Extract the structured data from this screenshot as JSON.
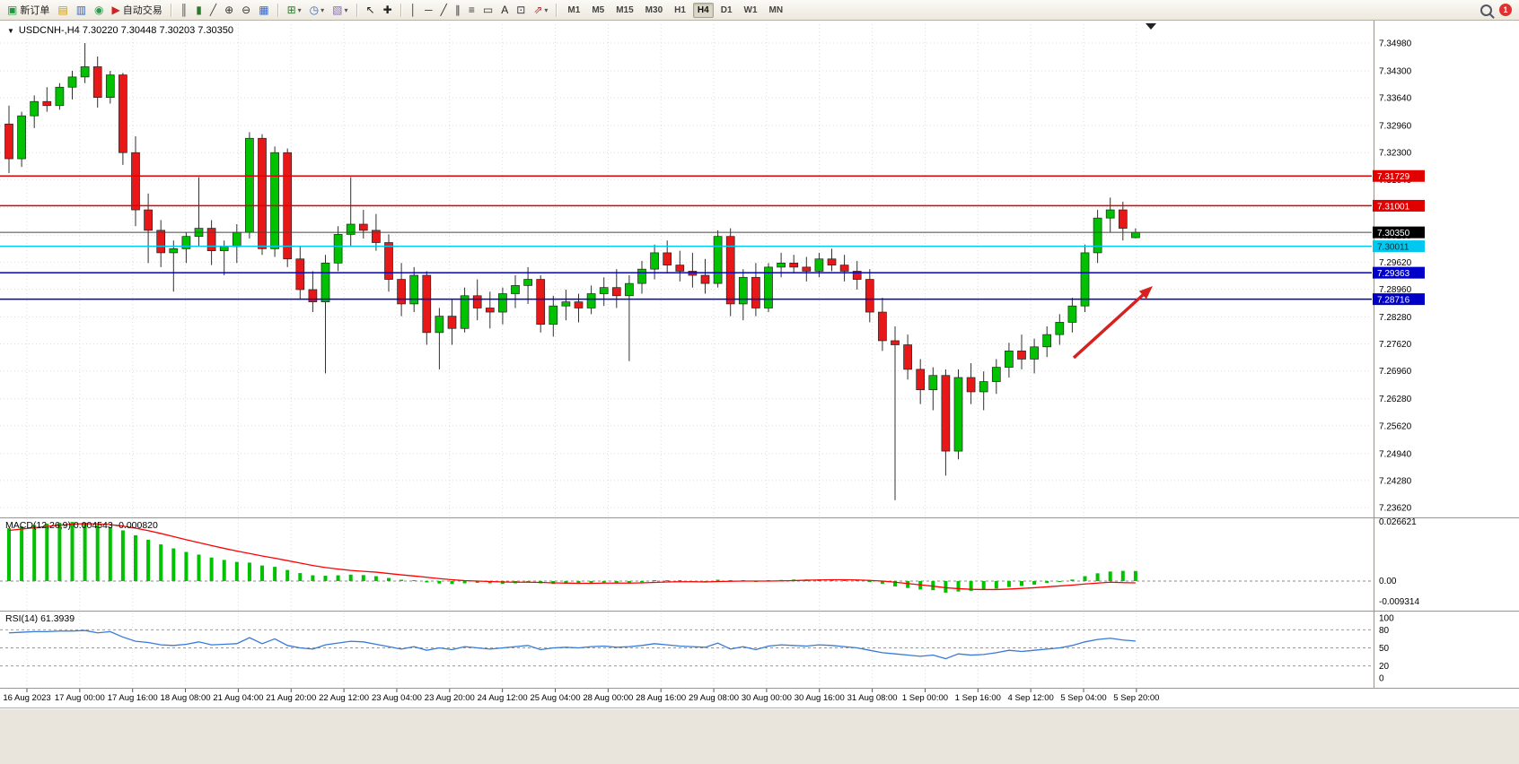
{
  "icons": {
    "chart_menu": "▼"
  },
  "toolbar": {
    "badge": "1",
    "groups": [
      {
        "items": [
          {
            "name": "new-order-button",
            "icon": "new-order-icon",
            "glyph": "▣",
            "glyph_color": "#1a9c3c",
            "label": "新订单"
          },
          {
            "name": "charts-button",
            "icon": "chart-folder-icon",
            "glyph": "▤",
            "glyph_color": "#c89610"
          },
          {
            "name": "market-watch-button",
            "icon": "market-watch-icon",
            "glyph": "▥",
            "glyph_color": "#3264c8"
          },
          {
            "name": "navigator-button",
            "icon": "navigator-icon",
            "glyph": "◉",
            "glyph_color": "#2e9b4e"
          },
          {
            "name": "auto-trading-button",
            "icon": "auto-trading-icon",
            "glyph": "▶",
            "glyph_color": "#d02020",
            "label": "自动交易"
          }
        ]
      },
      {
        "items": [
          {
            "name": "bar-chart-button",
            "icon": "bar-chart-icon",
            "glyph": "║",
            "glyph_color": "#444"
          },
          {
            "name": "candlestick-chart-button",
            "icon": "candlestick-icon",
            "glyph": "▮",
            "glyph_color": "#2a7a2a"
          },
          {
            "name": "line-chart-button",
            "icon": "line-chart-icon",
            "glyph": "╱",
            "glyph_color": "#444"
          },
          {
            "name": "zoom-in-button",
            "icon": "zoom-in-icon",
            "glyph": "⊕",
            "glyph_color": "#333"
          },
          {
            "name": "zoom-out-button",
            "icon": "zoom-out-icon",
            "glyph": "⊖",
            "glyph_color": "#333"
          },
          {
            "name": "tile-windows-button",
            "icon": "tile-windows-icon",
            "glyph": "▦",
            "glyph_color": "#3264c8"
          }
        ]
      },
      {
        "items": [
          {
            "name": "new-chart-button",
            "icon": "new-chart-icon",
            "glyph": "⊞",
            "glyph_color": "#2a7a2a",
            "dropdown": true
          },
          {
            "name": "period-button",
            "icon": "clock-icon",
            "glyph": "◷",
            "glyph_color": "#3264c8",
            "dropdown": true
          },
          {
            "name": "indicators-button",
            "icon": "indicator-icon",
            "glyph": "▧",
            "glyph_color": "#8a6ac0",
            "dropdown": true
          }
        ]
      },
      {
        "items": [
          {
            "name": "cursor-button",
            "icon": "cursor-icon",
            "glyph": "↖",
            "glyph_color": "#222"
          },
          {
            "name": "crosshair-button",
            "icon": "crosshair-icon",
            "glyph": "✚",
            "glyph_color": "#222"
          }
        ]
      },
      {
        "items": [
          {
            "name": "vertical-line-button",
            "icon": "vertical-line-icon",
            "glyph": "│",
            "glyph_color": "#333"
          },
          {
            "name": "horizontal-line-button",
            "icon": "horizontal-line-icon",
            "glyph": "─",
            "glyph_color": "#333"
          },
          {
            "name": "trendline-button",
            "icon": "trendline-icon",
            "glyph": "╱",
            "glyph_color": "#333"
          },
          {
            "name": "channel-button",
            "icon": "channel-icon",
            "glyph": "∥",
            "glyph_color": "#333"
          },
          {
            "name": "fibonacci-button",
            "icon": "fibonacci-icon",
            "glyph": "≡",
            "glyph_color": "#333"
          },
          {
            "name": "shapes-button",
            "icon": "shapes-icon",
            "glyph": "▭",
            "glyph_color": "#333"
          },
          {
            "name": "text-button",
            "icon": "text-icon",
            "glyph": "A",
            "glyph_color": "#222"
          },
          {
            "name": "label-button",
            "icon": "text-label-icon",
            "glyph": "⊡",
            "glyph_color": "#333"
          },
          {
            "name": "arrows-button",
            "icon": "arrow-objects-icon",
            "glyph": "⇗",
            "glyph_color": "#b03030",
            "dropdown": true
          }
        ]
      }
    ],
    "timeframes": [
      {
        "label": "M1"
      },
      {
        "label": "M5"
      },
      {
        "label": "M15"
      },
      {
        "label": "M30"
      },
      {
        "label": "H1"
      },
      {
        "label": "H4",
        "active": true
      },
      {
        "label": "D1"
      },
      {
        "label": "W1"
      },
      {
        "label": "MN"
      }
    ]
  },
  "chart_data": {
    "type": "candlestick",
    "title": "USDCNH-,H4   7.30220 7.30448 7.30203 7.30350",
    "symbol": "USDCNH-",
    "period": "H4",
    "quote": {
      "open": "7.30220",
      "high": "7.30448",
      "low": "7.30203",
      "close": "7.30350"
    },
    "ylim": [
      7.2362,
      7.3498
    ],
    "y_ticks": [
      "7.34980",
      "7.34300",
      "7.33640",
      "7.32960",
      "7.32300",
      "7.31640",
      "7.30960",
      "7.30280",
      "7.29620",
      "7.28960",
      "7.28280",
      "7.27620",
      "7.26960",
      "7.26280",
      "7.25620",
      "7.24940",
      "7.24280",
      "7.23620"
    ],
    "x_labels": [
      "16 Aug 2023",
      "17 Aug 00:00",
      "17 Aug 16:00",
      "18 Aug 08:00",
      "21 Aug 04:00",
      "21 Aug 20:00",
      "22 Aug 12:00",
      "23 Aug 04:00",
      "23 Aug 20:00",
      "24 Aug 12:00",
      "25 Aug 04:00",
      "28 Aug 00:00",
      "28 Aug 16:00",
      "29 Aug 08:00",
      "30 Aug 00:00",
      "30 Aug 16:00",
      "31 Aug 08:00",
      "1 Sep 00:00",
      "1 Sep 16:00",
      "4 Sep 12:00",
      "5 Sep 04:00",
      "5 Sep 20:00"
    ],
    "candles": [
      [
        7.33,
        7.3345,
        7.318,
        7.3215
      ],
      [
        7.3215,
        7.333,
        7.3195,
        7.332
      ],
      [
        7.332,
        7.337,
        7.329,
        7.3355
      ],
      [
        7.3355,
        7.339,
        7.333,
        7.3345
      ],
      [
        7.3345,
        7.34,
        7.3335,
        7.339
      ],
      [
        7.339,
        7.343,
        7.336,
        7.3415
      ],
      [
        7.3415,
        7.3498,
        7.34,
        7.344
      ],
      [
        7.344,
        7.3465,
        7.334,
        7.3365
      ],
      [
        7.3365,
        7.343,
        7.335,
        7.342
      ],
      [
        7.342,
        7.3425,
        7.32,
        7.323
      ],
      [
        7.323,
        7.327,
        7.305,
        7.309
      ],
      [
        7.309,
        7.313,
        7.296,
        7.304
      ],
      [
        7.304,
        7.3065,
        7.295,
        7.2985
      ],
      [
        7.2985,
        7.3015,
        7.289,
        7.2995
      ],
      [
        7.2995,
        7.3035,
        7.296,
        7.3025
      ],
      [
        7.3025,
        7.317,
        7.3,
        7.3045
      ],
      [
        7.3045,
        7.3065,
        7.2955,
        7.299
      ],
      [
        7.299,
        7.3015,
        7.293,
        7.3
      ],
      [
        7.3,
        7.3055,
        7.296,
        7.3035
      ],
      [
        7.3035,
        7.328,
        7.302,
        7.3265
      ],
      [
        7.3265,
        7.3275,
        7.298,
        7.2995
      ],
      [
        7.2995,
        7.3245,
        7.2975,
        7.323
      ],
      [
        7.323,
        7.324,
        7.295,
        7.297
      ],
      [
        7.297,
        7.3,
        7.287,
        7.2895
      ],
      [
        7.2895,
        7.294,
        7.284,
        7.2865
      ],
      [
        7.2865,
        7.298,
        7.269,
        7.296
      ],
      [
        7.296,
        7.305,
        7.294,
        7.303
      ],
      [
        7.303,
        7.317,
        7.3,
        7.3055
      ],
      [
        7.3055,
        7.309,
        7.302,
        7.304
      ],
      [
        7.304,
        7.308,
        7.299,
        7.301
      ],
      [
        7.301,
        7.303,
        7.289,
        7.292
      ],
      [
        7.292,
        7.296,
        7.283,
        7.286
      ],
      [
        7.286,
        7.295,
        7.284,
        7.293
      ],
      [
        7.293,
        7.294,
        7.276,
        7.279
      ],
      [
        7.279,
        7.285,
        7.27,
        7.283
      ],
      [
        7.283,
        7.287,
        7.276,
        7.28
      ],
      [
        7.28,
        7.29,
        7.279,
        7.288
      ],
      [
        7.288,
        7.292,
        7.282,
        7.285
      ],
      [
        7.285,
        7.289,
        7.28,
        7.284
      ],
      [
        7.284,
        7.29,
        7.281,
        7.2885
      ],
      [
        7.2885,
        7.293,
        7.285,
        7.2905
      ],
      [
        7.2905,
        7.295,
        7.286,
        7.292
      ],
      [
        7.292,
        7.293,
        7.279,
        7.281
      ],
      [
        7.281,
        7.288,
        7.278,
        7.2855
      ],
      [
        7.2855,
        7.2895,
        7.282,
        7.2865
      ],
      [
        7.2865,
        7.2885,
        7.2815,
        7.285
      ],
      [
        7.285,
        7.2905,
        7.2835,
        7.2885
      ],
      [
        7.2885,
        7.2925,
        7.2855,
        7.29
      ],
      [
        7.29,
        7.2945,
        7.285,
        7.288
      ],
      [
        7.288,
        7.293,
        7.272,
        7.291
      ],
      [
        7.291,
        7.2965,
        7.2885,
        7.2945
      ],
      [
        7.2945,
        7.3005,
        7.292,
        7.2985
      ],
      [
        7.2985,
        7.3015,
        7.2935,
        7.2955
      ],
      [
        7.2955,
        7.299,
        7.2915,
        7.294
      ],
      [
        7.294,
        7.2985,
        7.29,
        7.293
      ],
      [
        7.293,
        7.297,
        7.2885,
        7.291
      ],
      [
        7.291,
        7.304,
        7.29,
        7.3025
      ],
      [
        7.3025,
        7.3045,
        7.283,
        7.286
      ],
      [
        7.286,
        7.2945,
        7.282,
        7.2925
      ],
      [
        7.2925,
        7.296,
        7.283,
        7.285
      ],
      [
        7.285,
        7.296,
        7.284,
        7.295
      ],
      [
        7.295,
        7.2985,
        7.2925,
        7.296
      ],
      [
        7.296,
        7.298,
        7.2935,
        7.295
      ],
      [
        7.295,
        7.2975,
        7.2915,
        7.294
      ],
      [
        7.294,
        7.2985,
        7.2925,
        7.297
      ],
      [
        7.297,
        7.2995,
        7.294,
        7.2955
      ],
      [
        7.2955,
        7.298,
        7.2915,
        7.294
      ],
      [
        7.294,
        7.2965,
        7.2895,
        7.292
      ],
      [
        7.292,
        7.2945,
        7.2815,
        7.284
      ],
      [
        7.284,
        7.2875,
        7.2745,
        7.277
      ],
      [
        7.277,
        7.2805,
        7.238,
        7.276
      ],
      [
        7.276,
        7.2785,
        7.2675,
        7.27
      ],
      [
        7.27,
        7.2725,
        7.2615,
        7.265
      ],
      [
        7.265,
        7.2705,
        7.26,
        7.2685
      ],
      [
        7.2685,
        7.27,
        7.244,
        7.25
      ],
      [
        7.25,
        7.27,
        7.248,
        7.268
      ],
      [
        7.268,
        7.2715,
        7.2615,
        7.2645
      ],
      [
        7.2645,
        7.2695,
        7.26,
        7.267
      ],
      [
        7.267,
        7.2725,
        7.264,
        7.2705
      ],
      [
        7.2705,
        7.2765,
        7.268,
        7.2745
      ],
      [
        7.2745,
        7.2785,
        7.27,
        7.2725
      ],
      [
        7.2725,
        7.2775,
        7.269,
        7.2755
      ],
      [
        7.2755,
        7.2805,
        7.273,
        7.2785
      ],
      [
        7.2785,
        7.2835,
        7.276,
        7.2815
      ],
      [
        7.2815,
        7.2875,
        7.279,
        7.2855
      ],
      [
        7.2855,
        7.3005,
        7.284,
        7.2985
      ],
      [
        7.2985,
        7.309,
        7.296,
        7.307
      ],
      [
        7.307,
        7.312,
        7.3035,
        7.309
      ],
      [
        7.309,
        7.311,
        7.3015,
        7.3045
      ],
      [
        7.3022,
        7.30448,
        7.30203,
        7.3035
      ]
    ],
    "levels": [
      {
        "price": 7.31729,
        "label": "7.31729",
        "color": "#E00000",
        "text": "#FFFFFF"
      },
      {
        "price": 7.31001,
        "label": "7.31001",
        "color": "#E00000",
        "text": "#FFFFFF"
      },
      {
        "price": 7.30011,
        "label": "7.30011",
        "color": "#00C8F0",
        "text": "#00303C"
      },
      {
        "price": 7.29363,
        "label": "7.29363",
        "color": "#0000C8",
        "text": "#FFFFFF"
      },
      {
        "price": 7.28716,
        "label": "7.28716",
        "color": "#0000C8",
        "text": "#FFFFFF"
      }
    ],
    "current_price": {
      "value": 7.3035,
      "label": "7.30350"
    },
    "arrow": {
      "from": [
        1196,
        376
      ],
      "to": [
        1284,
        296
      ],
      "color": "#D82020"
    },
    "indicators": {
      "macd": {
        "label": "MACD(12,26,9) 0.004543 -0.000820",
        "scale_labels": [
          "0.026621",
          "0.00",
          "-0.009314"
        ],
        "range": [
          -0.009314,
          0.026621
        ],
        "histogram": [
          0.0238,
          0.0246,
          0.0252,
          0.0258,
          0.0262,
          0.0266,
          0.0262,
          0.0252,
          0.0243,
          0.0228,
          0.0206,
          0.0186,
          0.0165,
          0.0147,
          0.0131,
          0.0119,
          0.0106,
          0.0095,
          0.0086,
          0.0083,
          0.007,
          0.0064,
          0.005,
          0.0036,
          0.0026,
          0.0024,
          0.0026,
          0.0029,
          0.0027,
          0.0022,
          0.0014,
          0.0006,
          0.0003,
          -0.0006,
          -0.0011,
          -0.0013,
          -0.001,
          -0.0008,
          -0.001,
          -0.0012,
          -0.001,
          -0.0006,
          -0.001,
          -0.0013,
          -0.0012,
          -0.0012,
          -0.0009,
          -0.0007,
          -0.0008,
          -0.001,
          -0.0005,
          0.0001,
          0.0002,
          0.0001,
          -0.0001,
          -0.0003,
          0.0006,
          0.0004,
          0.0003,
          -0.0001,
          0.0002,
          0.0005,
          0.0007,
          0.0007,
          0.0008,
          0.0007,
          0.0005,
          0.0003,
          -0.0003,
          -0.0012,
          -0.0024,
          -0.0031,
          -0.0038,
          -0.0041,
          -0.0052,
          -0.0047,
          -0.0044,
          -0.004,
          -0.0034,
          -0.0027,
          -0.0022,
          -0.0016,
          -0.0009,
          -0.0003,
          0.0007,
          0.0022,
          0.0035,
          0.0043,
          0.0046,
          0.004543
        ],
        "signal": [
          0.0228,
          0.0234,
          0.024,
          0.0246,
          0.0251,
          0.0256,
          0.0258,
          0.0257,
          0.0254,
          0.0247,
          0.0238,
          0.0227,
          0.0214,
          0.02,
          0.0186,
          0.0173,
          0.016,
          0.0147,
          0.0135,
          0.0124,
          0.0113,
          0.0103,
          0.0092,
          0.0081,
          0.007,
          0.0061,
          0.0054,
          0.0048,
          0.0044,
          0.004,
          0.0034,
          0.0028,
          0.0023,
          0.0017,
          0.0011,
          0.0006,
          0.0002,
          0.0,
          -0.0002,
          -0.0004,
          -0.0005,
          -0.0005,
          -0.0006,
          -0.0008,
          -0.0009,
          -0.001,
          -0.001,
          -0.0009,
          -0.0009,
          -0.0009,
          -0.0008,
          -0.0006,
          -0.0004,
          -0.0003,
          -0.0003,
          -0.0004,
          -0.0002,
          -0.0001,
          0.0,
          0.0,
          0.0,
          0.0001,
          0.0002,
          0.0004,
          0.0005,
          0.0006,
          0.0006,
          0.0005,
          0.0003,
          0.0,
          -0.0005,
          -0.0011,
          -0.0017,
          -0.0023,
          -0.003,
          -0.0034,
          -0.0037,
          -0.0038,
          -0.0038,
          -0.0036,
          -0.0033,
          -0.003,
          -0.0026,
          -0.0022,
          -0.0018,
          -0.0013,
          -0.0009,
          -0.0005,
          -0.0007,
          -0.00082
        ]
      },
      "rsi": {
        "label": "RSI(14) 61.3939",
        "scale_labels": [
          "100",
          "80",
          "50",
          "20",
          "0"
        ],
        "scale_values": [
          100,
          80,
          50,
          20,
          0
        ],
        "dashed_levels": [
          80,
          50,
          20
        ],
        "range": [
          0,
          100
        ],
        "values": [
          75,
          76,
          77,
          77,
          78,
          78,
          79,
          75,
          77,
          68,
          61,
          59,
          55,
          54,
          56,
          60,
          55,
          56,
          57,
          67,
          57,
          65,
          54,
          50,
          48,
          55,
          58,
          61,
          60,
          56,
          52,
          48,
          52,
          46,
          50,
          47,
          52,
          50,
          48,
          50,
          52,
          54,
          47,
          50,
          51,
          50,
          52,
          53,
          51,
          52,
          54,
          57,
          55,
          53,
          52,
          51,
          58,
          48,
          52,
          47,
          53,
          55,
          54,
          53,
          55,
          54,
          52,
          50,
          46,
          42,
          40,
          38,
          36,
          38,
          32,
          40,
          38,
          39,
          42,
          46,
          44,
          46,
          48,
          50,
          54,
          60,
          64,
          66,
          63,
          61.3939
        ]
      }
    },
    "colors": {
      "up": "#00C200",
      "down": "#E81818",
      "wick": "#303030",
      "macd_hist": "#00C200",
      "macd_signal": "#FF0000",
      "rsi_line": "#3879D9",
      "grid": "#DCDCDC",
      "separator": "#9a968c",
      "current_line": "#444444",
      "tag_current_bg": "#000000",
      "tag_current_text": "#FFFFFF"
    }
  }
}
